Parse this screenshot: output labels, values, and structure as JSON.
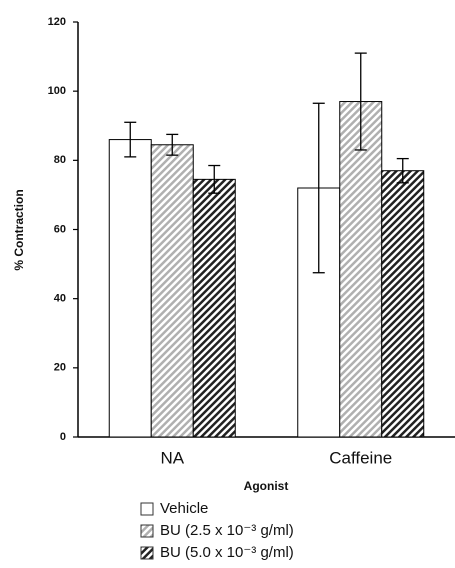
{
  "chart_data": {
    "type": "bar",
    "x_label": "Agonist",
    "y_label": "% Contraction",
    "categories": [
      "NA",
      "Caffeine"
    ],
    "series": [
      {
        "name": "Vehicle",
        "color": "#ffffff",
        "hatch": false,
        "values": [
          86,
          72
        ],
        "errors": [
          5,
          24.5
        ]
      },
      {
        "name": "BU (2.5 x 10⁻³ g/ml)",
        "color": "#b0b0b0",
        "hatch": true,
        "values": [
          84.5,
          97
        ],
        "errors": [
          3,
          14
        ]
      },
      {
        "name": "BU (5.0 x 10⁻³ g/ml)",
        "color": "#222222",
        "hatch": true,
        "values": [
          74.5,
          77
        ],
        "errors": [
          4,
          3.5
        ]
      }
    ],
    "ylim": [
      0,
      120
    ],
    "yticks": [
      0,
      20,
      40,
      60,
      80,
      100,
      120
    ],
    "grid": false
  }
}
